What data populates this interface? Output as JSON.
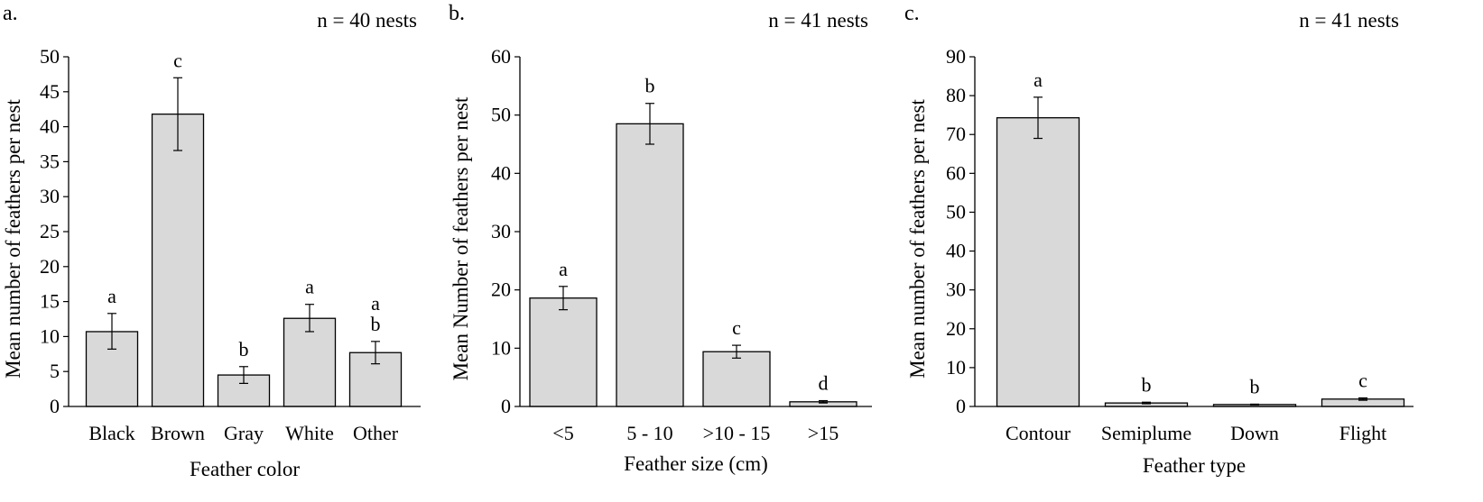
{
  "chart_data": [
    {
      "type": "bar",
      "panel_label": "a.",
      "annotation": "n = 40 nests",
      "categories": [
        "Black",
        "Brown",
        "Gray",
        "White",
        "Other"
      ],
      "values": [
        10.7,
        41.8,
        4.5,
        12.6,
        7.7
      ],
      "error_low": [
        8.2,
        36.6,
        3.3,
        10.7,
        6.1
      ],
      "error_high": [
        13.3,
        47.0,
        5.7,
        14.6,
        9.3
      ],
      "letters": [
        [
          "a"
        ],
        [
          "c"
        ],
        [
          "b"
        ],
        [
          "a"
        ],
        [
          "a",
          "b"
        ]
      ],
      "xlabel": "Feather color",
      "ylabel": "Mean number of feathers per nest",
      "ylim": [
        0,
        50
      ],
      "yticks": [
        0,
        5,
        10,
        15,
        20,
        25,
        30,
        35,
        40,
        45,
        50
      ],
      "bar_color": "#d9d9d9",
      "grid": false
    },
    {
      "type": "bar",
      "panel_label": "b.",
      "annotation": "n = 41 nests",
      "categories": [
        "<5",
        "5 - 10",
        ">10 - 15",
        ">15"
      ],
      "values": [
        18.6,
        48.5,
        9.4,
        0.8
      ],
      "error_low": [
        16.6,
        45.0,
        8.3,
        0.6
      ],
      "error_high": [
        20.6,
        52.0,
        10.5,
        1.0
      ],
      "letters": [
        [
          "a"
        ],
        [
          "b"
        ],
        [
          "c"
        ],
        [
          "d"
        ]
      ],
      "xlabel": "Feather size (cm)",
      "ylabel": "Mean Number of feathers per nest",
      "ylim": [
        0,
        60
      ],
      "yticks": [
        0,
        10,
        20,
        30,
        40,
        50,
        60
      ],
      "bar_color": "#d9d9d9",
      "grid": false
    },
    {
      "type": "bar",
      "panel_label": "c.",
      "annotation": "n = 41 nests",
      "categories": [
        "Contour",
        "Semiplume",
        "Down",
        "Flight"
      ],
      "values": [
        74.3,
        0.9,
        0.5,
        1.9
      ],
      "error_low": [
        69.0,
        0.7,
        0.4,
        1.6
      ],
      "error_high": [
        79.6,
        1.1,
        0.6,
        2.2
      ],
      "letters": [
        [
          "a"
        ],
        [
          "b"
        ],
        [
          "b"
        ],
        [
          "c"
        ]
      ],
      "xlabel": "Feather type",
      "ylabel": "Mean number of feathers per nest",
      "ylim": [
        0,
        90
      ],
      "yticks": [
        0,
        10,
        20,
        30,
        40,
        50,
        60,
        70,
        80,
        90
      ],
      "bar_color": "#d9d9d9",
      "grid": false
    }
  ]
}
